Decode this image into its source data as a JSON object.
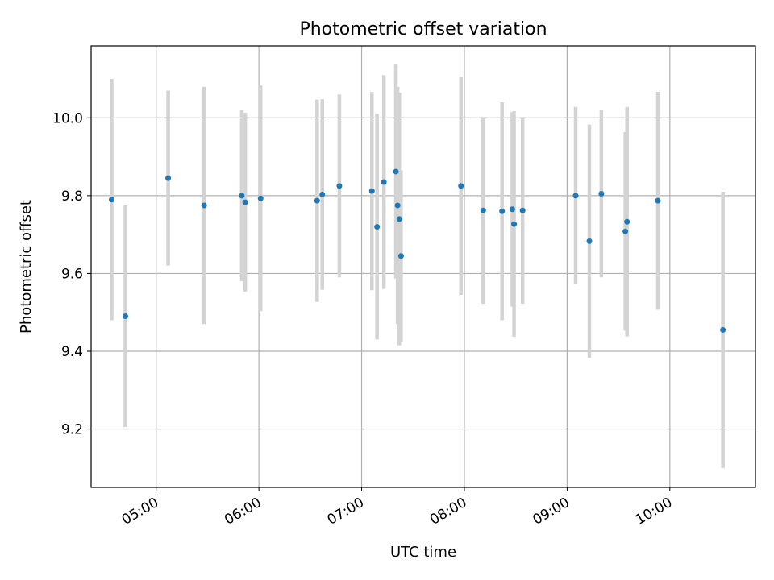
{
  "chart_data": {
    "type": "scatter",
    "title": "Photometric offset variation",
    "xlabel": "UTC time",
    "ylabel": "Photometric offset",
    "x_is_time": true,
    "xlim": [
      "04:22",
      "10:50"
    ],
    "ylim": [
      9.05,
      10.185
    ],
    "x_ticks": [
      "05:00",
      "06:00",
      "07:00",
      "08:00",
      "09:00",
      "10:00"
    ],
    "y_ticks": [
      9.2,
      9.4,
      9.6,
      9.8,
      10.0
    ],
    "y_tick_labels": [
      "9.2",
      "9.4",
      "9.6",
      "9.8",
      "10.0"
    ],
    "grid": true,
    "colors": {
      "points": "#1f77b4",
      "errorbars": "#d3d3d3",
      "grid": "#b0b0b0"
    },
    "points": [
      {
        "time": "04:34",
        "y": 9.79,
        "err": 0.31
      },
      {
        "time": "04:42",
        "y": 9.49,
        "err": 0.285
      },
      {
        "time": "05:07",
        "y": 9.845,
        "err": 0.225
      },
      {
        "time": "05:28",
        "y": 9.775,
        "err": 0.305
      },
      {
        "time": "05:50",
        "y": 9.8,
        "err": 0.22
      },
      {
        "time": "05:52",
        "y": 9.783,
        "err": 0.23
      },
      {
        "time": "06:01",
        "y": 9.793,
        "err": 0.29
      },
      {
        "time": "06:34",
        "y": 9.787,
        "err": 0.26
      },
      {
        "time": "06:37",
        "y": 9.803,
        "err": 0.245
      },
      {
        "time": "06:47",
        "y": 9.825,
        "err": 0.235
      },
      {
        "time": "07:06",
        "y": 9.812,
        "err": 0.255
      },
      {
        "time": "07:09",
        "y": 9.72,
        "err": 0.29
      },
      {
        "time": "07:13",
        "y": 9.835,
        "err": 0.275
      },
      {
        "time": "07:20",
        "y": 9.862,
        "err": 0.275
      },
      {
        "time": "07:21",
        "y": 9.775,
        "err": 0.305
      },
      {
        "time": "07:22",
        "y": 9.74,
        "err": 0.325
      },
      {
        "time": "07:23",
        "y": 9.645,
        "err": 0.22
      },
      {
        "time": "07:58",
        "y": 9.825,
        "err": 0.28
      },
      {
        "time": "08:11",
        "y": 9.762,
        "err": 0.24
      },
      {
        "time": "08:22",
        "y": 9.76,
        "err": 0.28
      },
      {
        "time": "08:28",
        "y": 9.765,
        "err": 0.25
      },
      {
        "time": "08:29",
        "y": 9.727,
        "err": 0.29
      },
      {
        "time": "08:34",
        "y": 9.762,
        "err": 0.24
      },
      {
        "time": "09:05",
        "y": 9.8,
        "err": 0.228
      },
      {
        "time": "09:13",
        "y": 9.683,
        "err": 0.3
      },
      {
        "time": "09:20",
        "y": 9.805,
        "err": 0.215
      },
      {
        "time": "09:34",
        "y": 9.708,
        "err": 0.255
      },
      {
        "time": "09:35",
        "y": 9.733,
        "err": 0.295
      },
      {
        "time": "09:53",
        "y": 9.787,
        "err": 0.28
      },
      {
        "time": "10:31",
        "y": 9.455,
        "err": 0.355
      }
    ]
  }
}
